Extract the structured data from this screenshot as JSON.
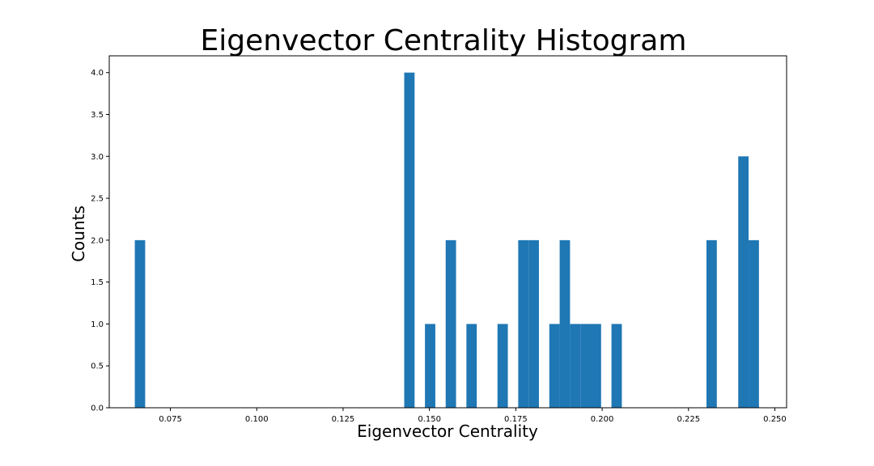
{
  "chart_data": {
    "type": "bar",
    "title": "Eigenvector Centrality Histogram",
    "xlabel": "Eigenvector Centrality",
    "ylabel": "Counts",
    "xlim": [
      0.0573,
      0.2534
    ],
    "ylim": [
      0,
      4.2
    ],
    "x_ticks": [
      "0.075",
      "0.100",
      "0.125",
      "0.150",
      "0.175",
      "0.200",
      "0.225",
      "0.250"
    ],
    "y_ticks": [
      "0.0",
      "0.5",
      "1.0",
      "1.5",
      "2.0",
      "2.5",
      "3.0",
      "3.5",
      "4.0"
    ],
    "bin_width": 0.003,
    "bars": [
      {
        "x": 0.0647,
        "value": 2
      },
      {
        "x": 0.1427,
        "value": 4
      },
      {
        "x": 0.1487,
        "value": 1
      },
      {
        "x": 0.1547,
        "value": 2
      },
      {
        "x": 0.1607,
        "value": 1
      },
      {
        "x": 0.1697,
        "value": 1
      },
      {
        "x": 0.1757,
        "value": 2
      },
      {
        "x": 0.1787,
        "value": 2
      },
      {
        "x": 0.1847,
        "value": 1
      },
      {
        "x": 0.1877,
        "value": 2
      },
      {
        "x": 0.1907,
        "value": 1
      },
      {
        "x": 0.1937,
        "value": 1
      },
      {
        "x": 0.1967,
        "value": 1
      },
      {
        "x": 0.2027,
        "value": 1
      },
      {
        "x": 0.2302,
        "value": 2
      },
      {
        "x": 0.2394,
        "value": 3
      },
      {
        "x": 0.2424,
        "value": 2
      }
    ],
    "color": "#1f77b4",
    "grid": false,
    "legend": "none"
  }
}
